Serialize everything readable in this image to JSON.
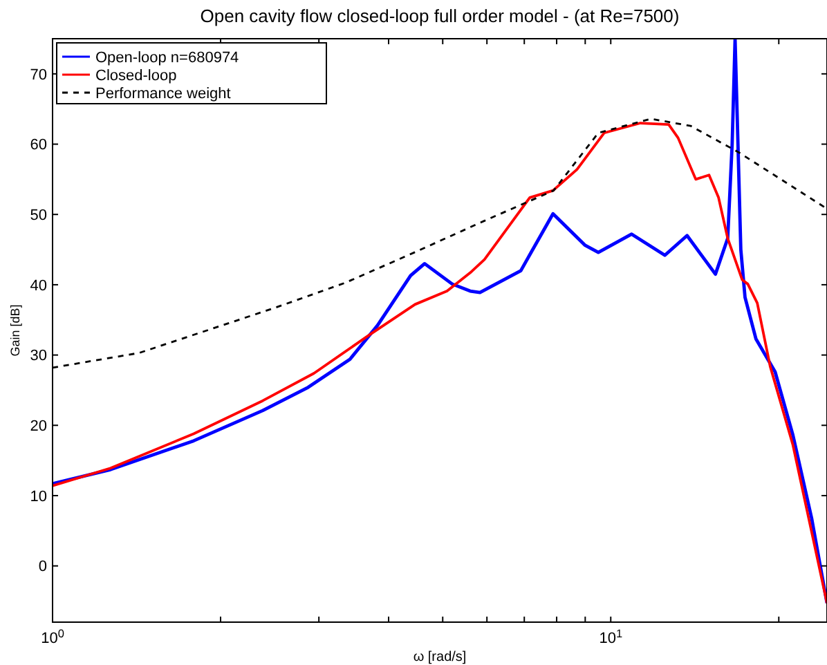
{
  "chart_data": {
    "type": "line",
    "title": "Open cavity flow closed-loop full order model -  (at Re=7500)",
    "xlabel": "ω [rad/s]",
    "ylabel": "Gain [dB]",
    "log": "x",
    "xlim": [
      1,
      24.4
    ],
    "ylim": [
      -8,
      75
    ],
    "xticks": [
      {
        "value": 1,
        "label": "10$^{0}$"
      },
      {
        "value": 2,
        "label": null
      },
      {
        "value": 3,
        "label": null
      },
      {
        "value": 4,
        "label": null
      },
      {
        "value": 5,
        "label": null
      },
      {
        "value": 6,
        "label": null
      },
      {
        "value": 7,
        "label": null
      },
      {
        "value": 8,
        "label": null
      },
      {
        "value": 9,
        "label": null
      },
      {
        "value": 10,
        "label": "10$^{1}$"
      },
      {
        "value": 20,
        "label": null
      }
    ],
    "yticks": [
      0,
      10,
      20,
      30,
      40,
      50,
      60,
      70
    ],
    "grid": false,
    "legend": "top left",
    "marker": "none",
    "series": [
      {
        "name": "Open-loop n=680974",
        "color": "#0000ff",
        "line_style": "solid",
        "x": [
          1,
          1.27,
          1.79,
          2.38,
          2.87,
          3.41,
          3.82,
          4.38,
          4.64,
          5.2,
          5.6,
          5.83,
          6.9,
          7.88,
          9.0,
          9.5,
          10.9,
          12.5,
          13.7,
          15.4,
          16.2,
          16.5,
          16.7,
          16.9,
          17.1,
          17.4,
          18.2,
          19.7,
          21.2,
          22.9,
          24.4
        ],
        "values": [
          11.7,
          13.7,
          17.8,
          22.1,
          25.4,
          29.4,
          34.2,
          41.3,
          43.0,
          40.1,
          39.1,
          38.9,
          42.0,
          50.1,
          45.6,
          44.6,
          47.2,
          44.2,
          47.0,
          41.5,
          46.6,
          60,
          75,
          60,
          45,
          38.2,
          32.3,
          27.6,
          18.6,
          6.8,
          -5.3
        ]
      },
      {
        "name": "Closed-loop",
        "color": "#ff0000",
        "line_style": "solid",
        "x": [
          1,
          1.27,
          1.79,
          2.38,
          2.94,
          3.7,
          4.46,
          5.09,
          5.6,
          5.94,
          7.16,
          7.88,
          8.7,
          9.73,
          11.3,
          12.7,
          13.2,
          14.2,
          15.0,
          15.6,
          16.2,
          17.2,
          17.6,
          18.3,
          19.3,
          21.2,
          24.4
        ],
        "values": [
          11.4,
          13.9,
          18.8,
          23.5,
          27.4,
          32.9,
          37.2,
          39.1,
          41.7,
          43.6,
          52.4,
          53.4,
          56.4,
          61.6,
          63.0,
          62.8,
          60.9,
          55.0,
          55.6,
          52.4,
          46.6,
          40.7,
          40.1,
          37.4,
          28.4,
          17.2,
          -5.3
        ]
      },
      {
        "name": "Performance weight",
        "color": "#000000",
        "line_style": "dashed",
        "x": [
          1,
          1.43,
          2.52,
          3.35,
          4.45,
          5.94,
          7.9,
          9.5,
          11.8,
          13.9,
          16.9,
          24.3
        ],
        "values": [
          28.2,
          30.3,
          36.8,
          40.3,
          44.6,
          49.1,
          53.4,
          61.6,
          63.6,
          62.6,
          58.9,
          50.9
        ]
      }
    ]
  }
}
